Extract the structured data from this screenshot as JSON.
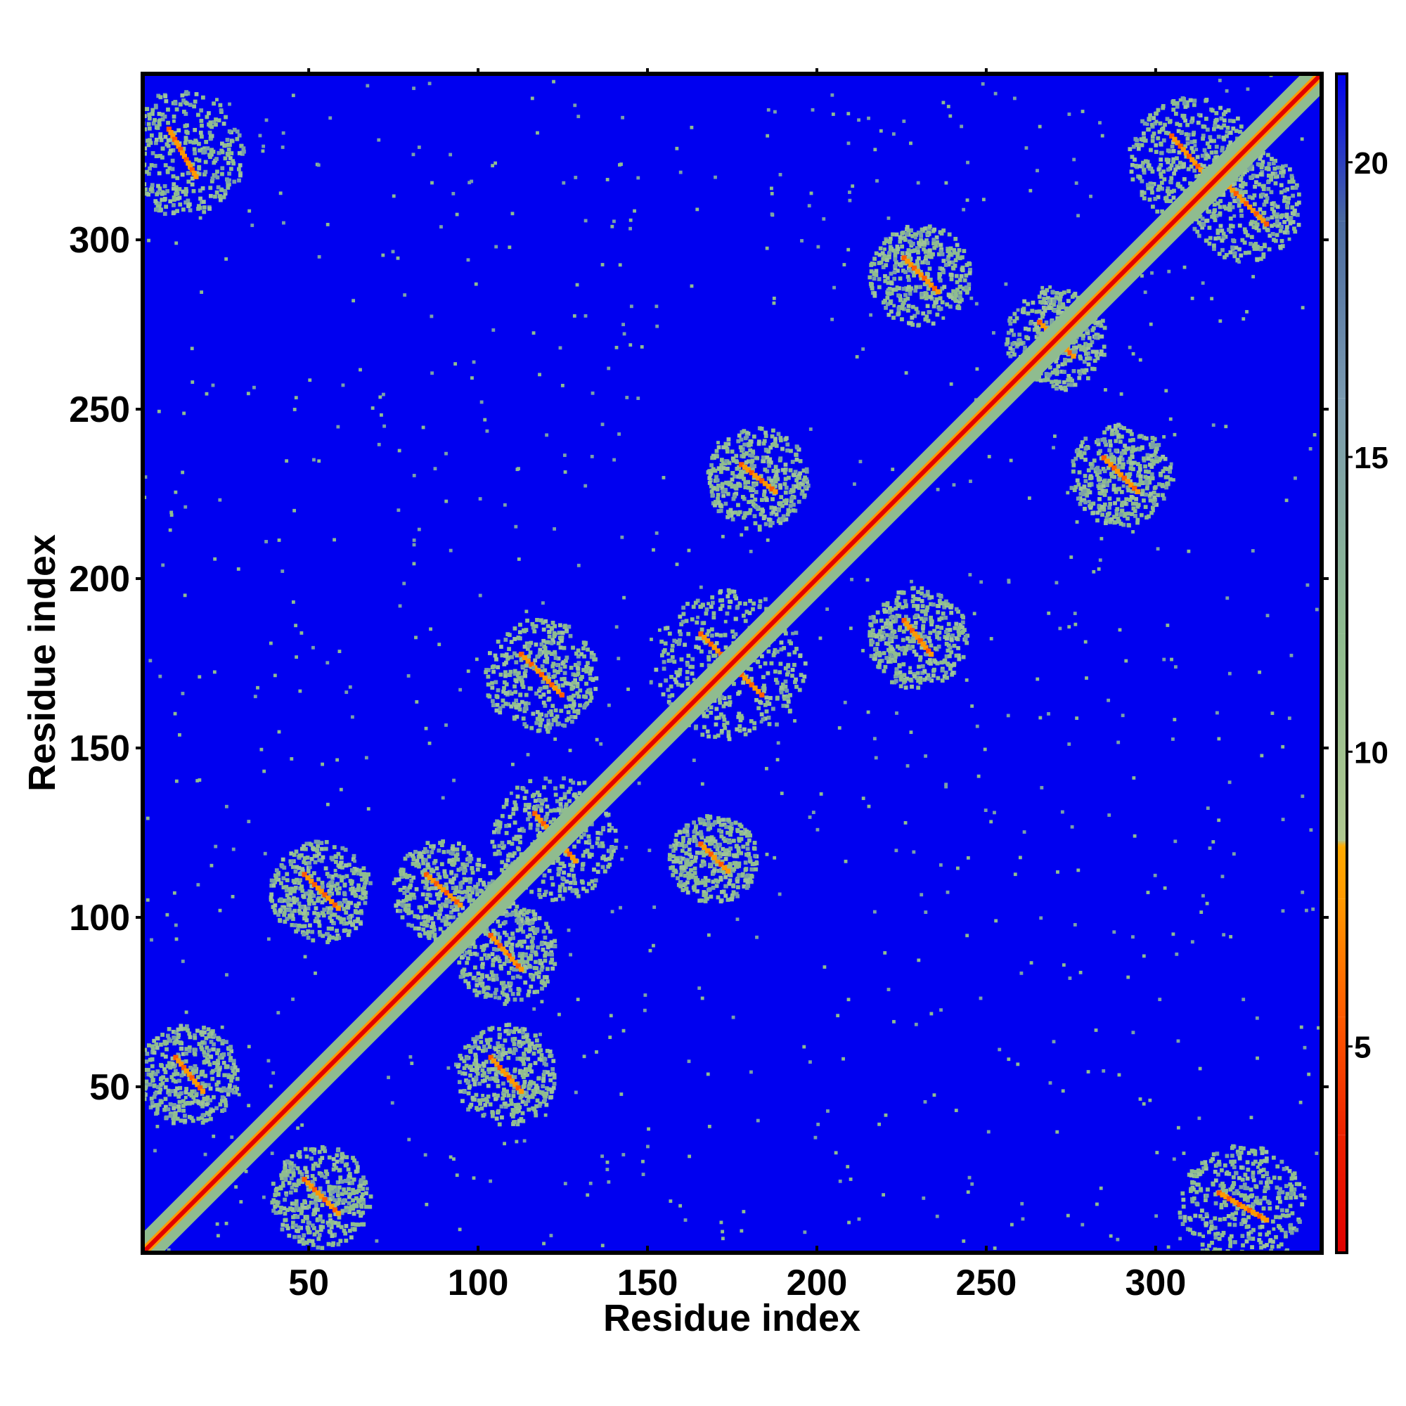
{
  "chart_data": {
    "type": "heatmap",
    "title": "",
    "xlabel": "Residue index",
    "ylabel": "Residue index",
    "xlim": [
      1,
      349
    ],
    "ylim": [
      1,
      349
    ],
    "x_ticks": [
      50,
      100,
      150,
      200,
      250,
      300
    ],
    "y_ticks": [
      50,
      100,
      150,
      200,
      250,
      300
    ],
    "colorbar": {
      "range": [
        1.5,
        21.5
      ],
      "ticks": [
        5,
        10,
        15,
        20
      ],
      "stops": [
        {
          "value": 1.5,
          "color": "#e00000"
        },
        {
          "value": 3.5,
          "color": "#ee2200"
        },
        {
          "value": 5.5,
          "color": "#ff5a00"
        },
        {
          "value": 7.5,
          "color": "#ff9900"
        },
        {
          "value": 8.4,
          "color": "#ffaa00"
        },
        {
          "value": 8.5,
          "color": "#b0c890"
        },
        {
          "value": 12.0,
          "color": "#8fbc8f"
        },
        {
          "value": 16.0,
          "color": "#7a9ab0"
        },
        {
          "value": 19.0,
          "color": "#4a6aa0"
        },
        {
          "value": 21.5,
          "color": "#0000f0"
        }
      ]
    },
    "background_color": "#0000f0",
    "features": [
      {
        "kind": "diagonal",
        "from": 1,
        "to": 349,
        "core_value": 2,
        "halo_width": 6
      },
      {
        "kind": "anti_diagonal_pair",
        "x_range": [
          8,
          16
        ],
        "y_range": [
          318,
          332
        ],
        "value": 5
      },
      {
        "kind": "anti_diagonal_pair",
        "x_range": [
          10,
          18
        ],
        "y_range": [
          48,
          58
        ],
        "value": 5
      },
      {
        "kind": "anti_diagonal_pair",
        "x_range": [
          48,
          58
        ],
        "y_range": [
          12,
          22
        ],
        "value": 5
      },
      {
        "kind": "anti_diagonal_pair",
        "x_range": [
          48,
          58
        ],
        "y_range": [
          102,
          112
        ],
        "value": 5
      },
      {
        "kind": "anti_diagonal_pair",
        "x_range": [
          84,
          94
        ],
        "y_range": [
          103,
          112
        ],
        "value": 5
      },
      {
        "kind": "anti_diagonal_pair",
        "x_range": [
          103,
          112
        ],
        "y_range": [
          84,
          94
        ],
        "value": 5
      },
      {
        "kind": "anti_diagonal_pair",
        "x_range": [
          103,
          112
        ],
        "y_range": [
          48,
          58
        ],
        "value": 5
      },
      {
        "kind": "anti_diagonal_pair",
        "x_range": [
          116,
          128
        ],
        "y_range": [
          116,
          130
        ],
        "value": 6
      },
      {
        "kind": "anti_diagonal_pair",
        "x_range": [
          112,
          124
        ],
        "y_range": [
          165,
          177
        ],
        "value": 5
      },
      {
        "kind": "anti_diagonal_pair",
        "x_range": [
          165,
          183
        ],
        "y_range": [
          165,
          183
        ],
        "value": 5
      },
      {
        "kind": "anti_diagonal_pair",
        "x_range": [
          165,
          173
        ],
        "y_range": [
          113,
          121
        ],
        "value": 5
      },
      {
        "kind": "anti_diagonal_pair",
        "x_range": [
          177,
          187
        ],
        "y_range": [
          225,
          233
        ],
        "value": 6
      },
      {
        "kind": "anti_diagonal_pair",
        "x_range": [
          225,
          233
        ],
        "y_range": [
          177,
          187
        ],
        "value": 6
      },
      {
        "kind": "anti_diagonal_pair",
        "x_range": [
          225,
          235
        ],
        "y_range": [
          284,
          294
        ],
        "value": 5
      },
      {
        "kind": "anti_diagonal_pair",
        "x_range": [
          284,
          294
        ],
        "y_range": [
          225,
          235
        ],
        "value": 5
      },
      {
        "kind": "anti_diagonal_pair",
        "x_range": [
          318,
          332
        ],
        "y_range": [
          10,
          18
        ],
        "value": 5
      },
      {
        "kind": "anti_diagonal_pair",
        "x_range": [
          304,
          316
        ],
        "y_range": [
          316,
          330
        ],
        "value": 5
      },
      {
        "kind": "anti_diagonal_pair",
        "x_range": [
          320,
          332
        ],
        "y_range": [
          304,
          316
        ],
        "value": 5
      },
      {
        "kind": "anti_diagonal_pair",
        "x_range": [
          265,
          275
        ],
        "y_range": [
          265,
          275
        ],
        "value": 6
      }
    ]
  }
}
